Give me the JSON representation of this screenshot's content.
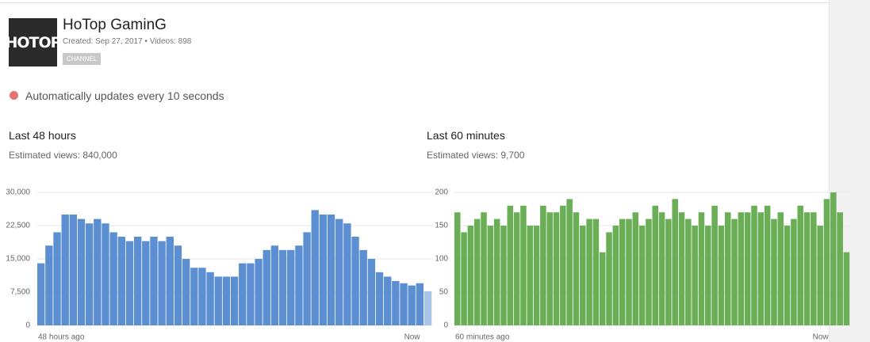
{
  "channel": {
    "logo_text": "HOTOP",
    "name": "HoTop GaminG",
    "created": "Created: Sep 27, 2017",
    "separator": "•",
    "videos": "Videos: 898",
    "badge": "CHANNEL"
  },
  "status": "Automatically updates every 10 seconds",
  "chart_data": [
    {
      "type": "bar",
      "title": "Last 48 hours",
      "subtitle": "Estimated views: 840,000",
      "color": "#5b8fd2",
      "current_color": "#a9c4e9",
      "categories": [
        "48 hours ago",
        null,
        null,
        null,
        null,
        null,
        null,
        null,
        null,
        null,
        null,
        null,
        null,
        null,
        null,
        null,
        null,
        null,
        null,
        null,
        null,
        null,
        null,
        null,
        null,
        null,
        null,
        null,
        null,
        null,
        null,
        null,
        null,
        null,
        null,
        null,
        null,
        null,
        null,
        null,
        null,
        null,
        null,
        null,
        null,
        null,
        "Now",
        null,
        null
      ],
      "values": [
        14000,
        18000,
        21000,
        25000,
        25000,
        24000,
        23000,
        24000,
        23000,
        21000,
        20000,
        19000,
        20000,
        19000,
        20000,
        19000,
        20000,
        18000,
        15000,
        13000,
        13000,
        12000,
        11000,
        11000,
        11000,
        14000,
        14000,
        15000,
        17000,
        18000,
        17000,
        17000,
        18000,
        21000,
        26000,
        25000,
        25000,
        24000,
        23000,
        20000,
        17000,
        15000,
        12000,
        11000,
        10000,
        9500,
        9000,
        9500,
        7700
      ],
      "ylim": [
        0,
        30000
      ],
      "yticks": [
        0,
        {
          "value": 7500,
          "label": "7,500"
        },
        {
          "value": 15000,
          "label": "15,000"
        },
        {
          "value": 22500,
          "label": "22,500"
        },
        {
          "value": 30000,
          "label": "30,000"
        }
      ],
      "grid": true
    },
    {
      "type": "bar",
      "title": "Last 60 minutes",
      "subtitle": "Estimated views: 9,700",
      "color": "#6aae56",
      "categories": [
        "60 minutes ago",
        null,
        null,
        null,
        null,
        null,
        null,
        null,
        null,
        null,
        null,
        null,
        null,
        null,
        null,
        null,
        null,
        null,
        null,
        null,
        null,
        null,
        null,
        null,
        null,
        null,
        null,
        null,
        null,
        null,
        null,
        null,
        null,
        null,
        null,
        null,
        null,
        null,
        null,
        null,
        null,
        null,
        null,
        null,
        null,
        null,
        null,
        null,
        null,
        null,
        null,
        null,
        null,
        null,
        null,
        "Now",
        null,
        null,
        null,
        null
      ],
      "values": [
        170,
        140,
        150,
        160,
        170,
        150,
        160,
        150,
        180,
        170,
        180,
        150,
        150,
        180,
        170,
        170,
        180,
        190,
        170,
        150,
        160,
        160,
        110,
        140,
        150,
        160,
        160,
        170,
        150,
        160,
        180,
        170,
        160,
        190,
        170,
        160,
        150,
        170,
        150,
        180,
        150,
        170,
        160,
        170,
        170,
        180,
        170,
        180,
        160,
        170,
        150,
        160,
        180,
        170,
        170,
        150,
        190,
        200,
        170,
        110
      ],
      "ylim": [
        0,
        200
      ],
      "yticks": [
        0,
        50,
        100,
        150,
        200
      ],
      "grid": true
    }
  ]
}
